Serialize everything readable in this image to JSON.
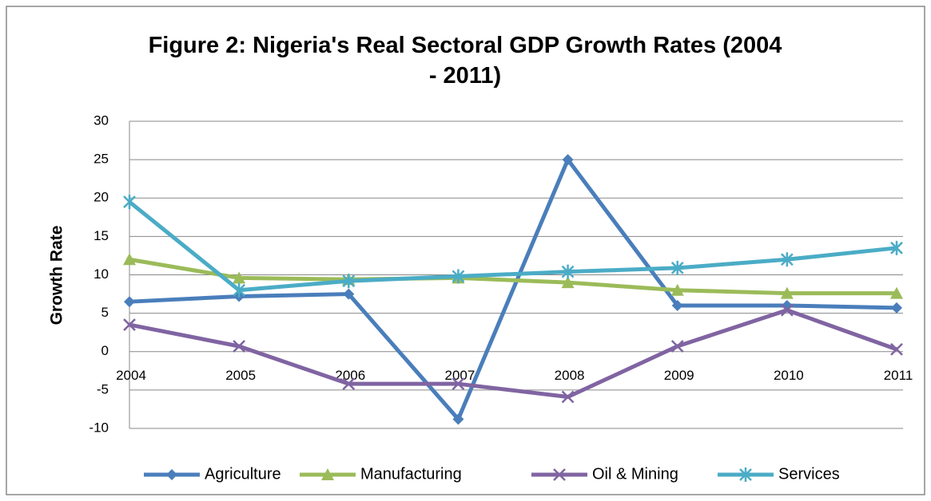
{
  "chart_data": {
    "type": "line",
    "title": "Figure 2: Nigeria's Real Sectoral GDP Growth Rates (2004 - 2011)",
    "y_label": "Growth Rate",
    "categories": [
      "2004",
      "2005",
      "2006",
      "2007",
      "2008",
      "2009",
      "2010",
      "2011"
    ],
    "series": [
      {
        "name": "Agriculture",
        "color": "#4a7ebb",
        "marker": "diamond",
        "values": [
          6.5,
          7.2,
          7.5,
          -8.8,
          25,
          6,
          6,
          5.7
        ]
      },
      {
        "name": "Manufacturing",
        "color": "#9bbb59",
        "marker": "triangle",
        "values": [
          12,
          9.6,
          9.4,
          9.6,
          9,
          8,
          7.6,
          7.6
        ]
      },
      {
        "name": "Oil & Mining",
        "color": "#8064a2",
        "marker": "x",
        "values": [
          3.5,
          0.7,
          -4.2,
          -4.2,
          -5.9,
          0.7,
          5.4,
          0.3
        ]
      },
      {
        "name": "Services",
        "color": "#4bacc6",
        "marker": "star",
        "values": [
          19.5,
          8,
          9.2,
          9.8,
          10.4,
          10.9,
          12,
          13.5
        ]
      }
    ],
    "ylim": [
      -10,
      30
    ],
    "yticks": [
      -10,
      -5,
      0,
      5,
      10,
      15,
      20,
      25,
      30
    ],
    "grid": true,
    "legend": "bottom"
  }
}
